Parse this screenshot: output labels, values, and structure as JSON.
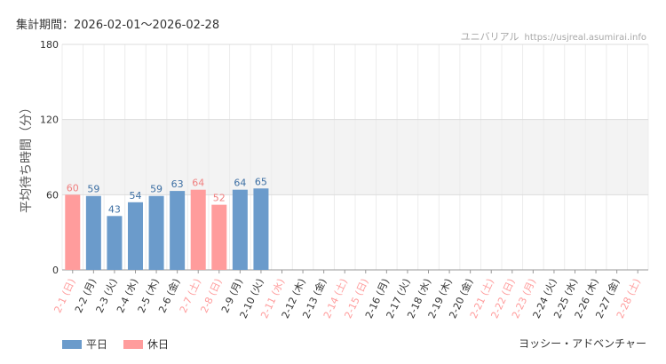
{
  "header": {
    "period": "集計期間：2026-02-01〜2026-02-28",
    "site_name": "ユニバリアル",
    "site_url": "https://usjreal.asumirai.info"
  },
  "attraction": "ヨッシー・アドベンチャー",
  "legend": {
    "weekday": "平日",
    "holiday": "休日"
  },
  "colors": {
    "weekday": "#6b9bcb",
    "holiday": "#ff9c9c",
    "weekday_label": "#3d6fa3",
    "holiday_label": "#f08080"
  },
  "chart_data": {
    "type": "bar",
    "ylabel": "平均待ち時間（分）",
    "ylim": [
      0,
      180
    ],
    "yticks": [
      0,
      60,
      120,
      180
    ],
    "categories": [
      "2-1 (日)",
      "2-2 (月)",
      "2-3 (火)",
      "2-4 (水)",
      "2-5 (木)",
      "2-6 (金)",
      "2-7 (土)",
      "2-8 (日)",
      "2-9 (月)",
      "2-10 (火)",
      "2-11 (水)",
      "2-12 (木)",
      "2-13 (金)",
      "2-14 (土)",
      "2-15 (日)",
      "2-16 (月)",
      "2-17 (火)",
      "2-18 (水)",
      "2-19 (木)",
      "2-20 (金)",
      "2-21 (土)",
      "2-22 (日)",
      "2-23 (月)",
      "2-24 (火)",
      "2-25 (水)",
      "2-26 (木)",
      "2-27 (金)",
      "2-28 (土)"
    ],
    "holiday": [
      true,
      false,
      false,
      false,
      false,
      false,
      true,
      true,
      false,
      false,
      true,
      false,
      false,
      true,
      true,
      false,
      false,
      false,
      false,
      false,
      true,
      true,
      true,
      false,
      false,
      false,
      false,
      true
    ],
    "values": [
      60,
      59,
      43,
      54,
      59,
      63,
      64,
      52,
      64,
      65,
      null,
      null,
      null,
      null,
      null,
      null,
      null,
      null,
      null,
      null,
      null,
      null,
      null,
      null,
      null,
      null,
      null,
      null
    ],
    "highlight_band": [
      60,
      120
    ],
    "grid": true
  }
}
